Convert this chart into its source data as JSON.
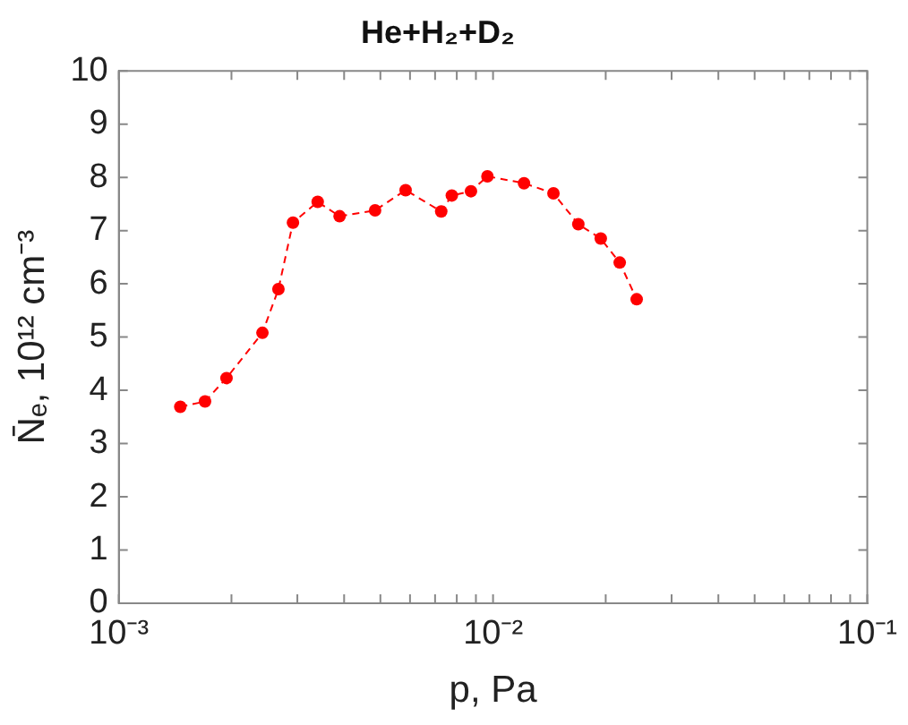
{
  "chart_data": {
    "type": "line",
    "title": "He+H₂+D₂",
    "xlabel": "p, Pa",
    "ylabel": "N̄ₑ, 10¹² cm⁻³",
    "log": "x",
    "marker": "circle",
    "line_style": "dashed",
    "x": [
      0.00146,
      0.0017,
      0.00194,
      0.00242,
      0.00267,
      0.00292,
      0.0034,
      0.00389,
      0.00484,
      0.00584,
      0.00727,
      0.00776,
      0.00873,
      0.00966,
      0.0121,
      0.0145,
      0.0169,
      0.0194,
      0.0218,
      0.0242
    ],
    "series": [
      {
        "color": "#ff0000",
        "values": [
          3.69,
          3.79,
          4.23,
          5.08,
          5.9,
          7.15,
          7.54,
          7.27,
          7.38,
          7.76,
          7.36,
          7.66,
          7.74,
          8.02,
          7.89,
          7.7,
          7.12,
          6.85,
          6.4,
          5.71
        ]
      }
    ],
    "xlim": [
      0.001,
      0.1
    ],
    "xticks": [
      {
        "value": 0.001,
        "label": "10⁻³"
      },
      {
        "value": 0.002,
        "label": null
      },
      {
        "value": 0.003,
        "label": null
      },
      {
        "value": 0.004,
        "label": null
      },
      {
        "value": 0.005,
        "label": null
      },
      {
        "value": 0.006,
        "label": null
      },
      {
        "value": 0.007,
        "label": null
      },
      {
        "value": 0.008,
        "label": null
      },
      {
        "value": 0.009,
        "label": null
      },
      {
        "value": 0.01,
        "label": "10⁻²"
      },
      {
        "value": 0.02,
        "label": null
      },
      {
        "value": 0.03,
        "label": null
      },
      {
        "value": 0.04,
        "label": null
      },
      {
        "value": 0.05,
        "label": null
      },
      {
        "value": 0.06,
        "label": null
      },
      {
        "value": 0.07,
        "label": null
      },
      {
        "value": 0.08,
        "label": null
      },
      {
        "value": 0.09,
        "label": null
      },
      {
        "value": 0.1,
        "label": "10⁻¹"
      }
    ],
    "ylim": [
      0,
      10
    ],
    "yticks": [
      0,
      1,
      2,
      3,
      4,
      5,
      6,
      7,
      8,
      9,
      10
    ]
  }
}
